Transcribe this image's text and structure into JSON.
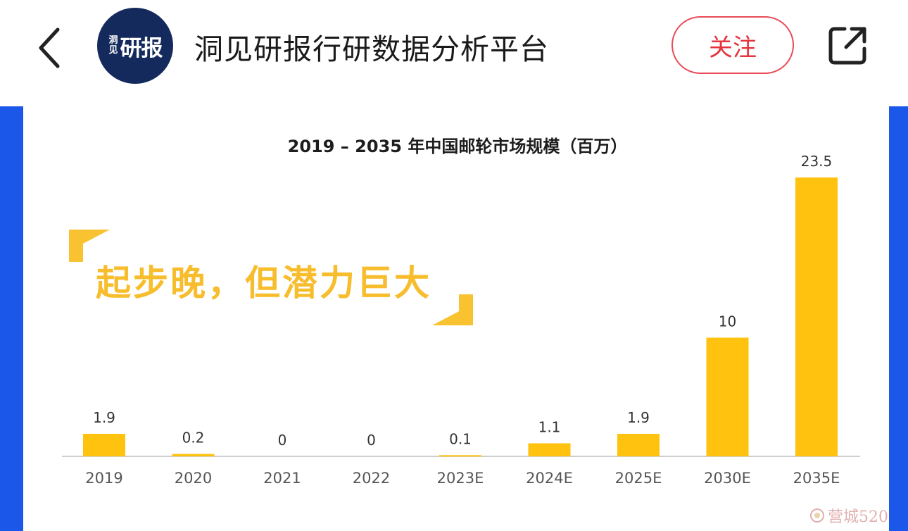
{
  "header": {
    "back_icon": "chevron-left-icon",
    "avatar": {
      "small_text": "洞见",
      "big_text": "研报"
    },
    "account_name": "洞见研报行研数据分析平台",
    "follow_label": "关注",
    "share_icon": "share-external-icon"
  },
  "slogan": "起步晚，但潜力巨大",
  "colors": {
    "accent_blue": "#1b57e8",
    "bar_yellow": "#ffc20e",
    "follow_red": "#e4353f",
    "avatar_navy": "#152a5c"
  },
  "watermark": {
    "text": "营城520"
  },
  "chart_data": {
    "type": "bar",
    "title": "2019 – 2035 年中国邮轮市场规模（百万）",
    "categories": [
      "2019",
      "2020",
      "2021",
      "2022",
      "2023E",
      "2024E",
      "2025E",
      "2030E",
      "2035E"
    ],
    "values": [
      1.9,
      0.2,
      0,
      0,
      0.1,
      1.1,
      1.9,
      10,
      23.5
    ],
    "labels": [
      "1.9",
      "0.2",
      "0",
      "0",
      "0.1",
      "1.1",
      "1.9",
      "10",
      "23.5"
    ],
    "xlabel": "",
    "ylabel": "",
    "ylim": [
      0,
      23.5
    ],
    "grid": false,
    "legend": "none"
  }
}
